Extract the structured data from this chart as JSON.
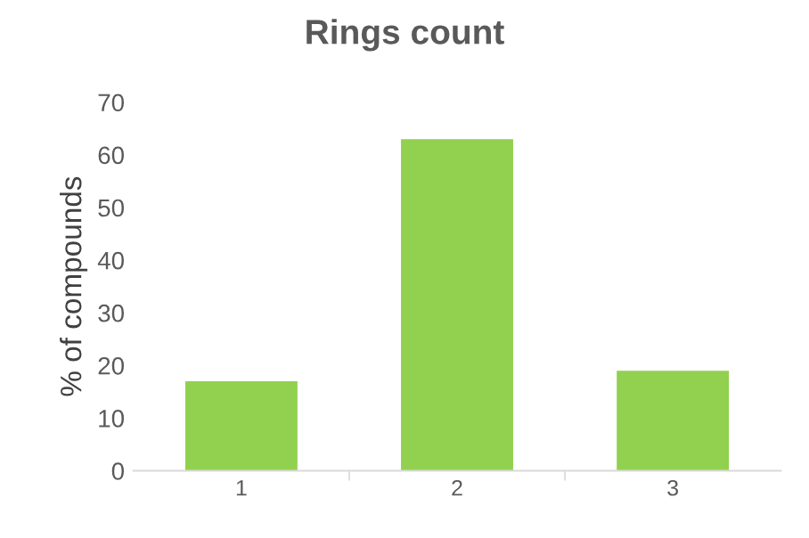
{
  "chart_data": {
    "type": "bar",
    "title": "Rings count",
    "ylabel": "% of compounds",
    "categories": [
      "1",
      "2",
      "3"
    ],
    "series": [
      {
        "color": "#92d050",
        "values": [
          17,
          63,
          19
        ]
      }
    ],
    "ylim": [
      0,
      70
    ],
    "yticks": [
      0,
      10,
      20,
      30,
      40,
      50,
      60,
      70
    ],
    "grid": false,
    "legend": false
  }
}
